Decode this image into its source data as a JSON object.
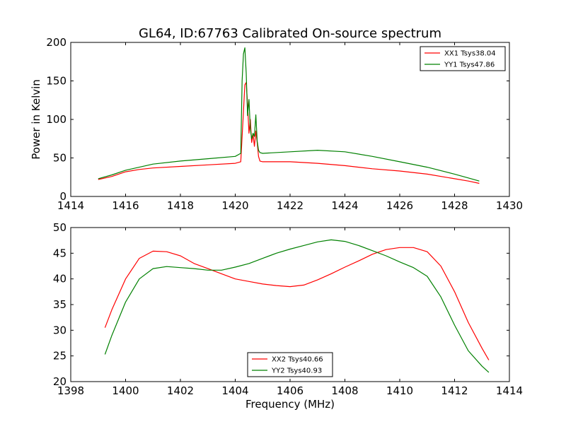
{
  "figure": {
    "title": "GL64, ID:67763 Calibrated On-source spectrum",
    "xlabel": "Frequency (MHz)",
    "ylabel": "Power in Kelvin"
  },
  "chart_data": [
    {
      "type": "line",
      "title": "GL64, ID:67763 Calibrated On-source spectrum",
      "xlabel": "",
      "ylabel": "Power in Kelvin",
      "xlim": [
        1414,
        1430
      ],
      "ylim": [
        0,
        200
      ],
      "xticks": [
        1414,
        1416,
        1418,
        1420,
        1422,
        1424,
        1426,
        1428,
        1430
      ],
      "yticks": [
        0,
        50,
        100,
        150,
        200
      ],
      "legend_position": "top-right",
      "series": [
        {
          "name": "XX1 Tsys38.04",
          "color": "#ff0000",
          "x": [
            1415.0,
            1415.5,
            1416.0,
            1416.5,
            1417.0,
            1418.0,
            1419.0,
            1420.0,
            1420.2,
            1420.3,
            1420.35,
            1420.4,
            1420.45,
            1420.5,
            1420.55,
            1420.6,
            1420.65,
            1420.7,
            1420.75,
            1420.8,
            1420.85,
            1420.9,
            1421.0,
            1422.0,
            1423.0,
            1424.0,
            1425.0,
            1426.0,
            1427.0,
            1428.0,
            1428.5,
            1428.9
          ],
          "y": [
            22,
            26,
            32,
            35,
            37,
            39,
            41,
            43,
            45,
            110,
            145,
            148,
            120,
            82,
            100,
            70,
            80,
            65,
            85,
            70,
            52,
            46,
            45,
            45,
            43,
            40,
            36,
            33,
            29,
            23,
            20,
            17
          ]
        },
        {
          "name": "YY1 Tsys47.86",
          "color": "#008000",
          "x": [
            1415.0,
            1415.5,
            1416.0,
            1416.5,
            1417.0,
            1418.0,
            1419.0,
            1420.0,
            1420.2,
            1420.25,
            1420.3,
            1420.35,
            1420.4,
            1420.45,
            1420.5,
            1420.55,
            1420.6,
            1420.65,
            1420.7,
            1420.75,
            1420.8,
            1420.85,
            1420.9,
            1421.0,
            1422.0,
            1423.0,
            1424.0,
            1425.0,
            1426.0,
            1427.0,
            1428.0,
            1428.5,
            1428.9
          ],
          "y": [
            23,
            28,
            34,
            38,
            42,
            46,
            49,
            52,
            56,
            150,
            185,
            193,
            160,
            105,
            126,
            88,
            75,
            82,
            78,
            106,
            72,
            60,
            57,
            56,
            58,
            60,
            58,
            52,
            45,
            38,
            29,
            24,
            20
          ]
        }
      ]
    },
    {
      "type": "line",
      "title": "",
      "xlabel": "Frequency (MHz)",
      "ylabel": "",
      "xlim": [
        1398,
        1414
      ],
      "ylim": [
        20,
        50
      ],
      "xticks": [
        1398,
        1400,
        1402,
        1404,
        1406,
        1408,
        1410,
        1412,
        1414
      ],
      "yticks": [
        20,
        25,
        30,
        35,
        40,
        45,
        50
      ],
      "legend_position": "bottom-center",
      "series": [
        {
          "name": "XX2 Tsys40.66",
          "color": "#ff0000",
          "x": [
            1399.25,
            1399.5,
            1400.0,
            1400.5,
            1401.0,
            1401.5,
            1402.0,
            1402.5,
            1403.0,
            1403.5,
            1404.0,
            1404.5,
            1405.0,
            1405.5,
            1406.0,
            1406.5,
            1407.0,
            1407.5,
            1408.0,
            1408.5,
            1409.0,
            1409.5,
            1410.0,
            1410.5,
            1411.0,
            1411.5,
            1412.0,
            1412.5,
            1413.0,
            1413.25
          ],
          "y": [
            30.5,
            34.0,
            40.0,
            44.0,
            45.4,
            45.3,
            44.5,
            43.0,
            42.0,
            41.0,
            40.0,
            39.5,
            39.0,
            38.7,
            38.5,
            38.8,
            39.8,
            41.0,
            42.3,
            43.5,
            44.8,
            45.7,
            46.1,
            46.1,
            45.3,
            42.5,
            37.5,
            31.5,
            26.5,
            24.2
          ]
        },
        {
          "name": "YY2 Tsys40.93",
          "color": "#008000",
          "x": [
            1399.25,
            1399.5,
            1400.0,
            1400.5,
            1401.0,
            1401.5,
            1402.0,
            1402.5,
            1403.0,
            1403.5,
            1404.0,
            1404.5,
            1405.0,
            1405.5,
            1406.0,
            1406.5,
            1407.0,
            1407.5,
            1408.0,
            1408.5,
            1409.0,
            1409.5,
            1410.0,
            1410.5,
            1411.0,
            1411.5,
            1412.0,
            1412.5,
            1413.0,
            1413.25
          ],
          "y": [
            25.3,
            29.0,
            35.5,
            40.0,
            42.0,
            42.4,
            42.2,
            42.0,
            41.7,
            41.7,
            42.3,
            43.0,
            44.0,
            45.0,
            45.8,
            46.5,
            47.2,
            47.6,
            47.3,
            46.5,
            45.5,
            44.5,
            43.3,
            42.2,
            40.5,
            36.5,
            31.0,
            26.0,
            23.0,
            21.8
          ]
        }
      ]
    }
  ]
}
